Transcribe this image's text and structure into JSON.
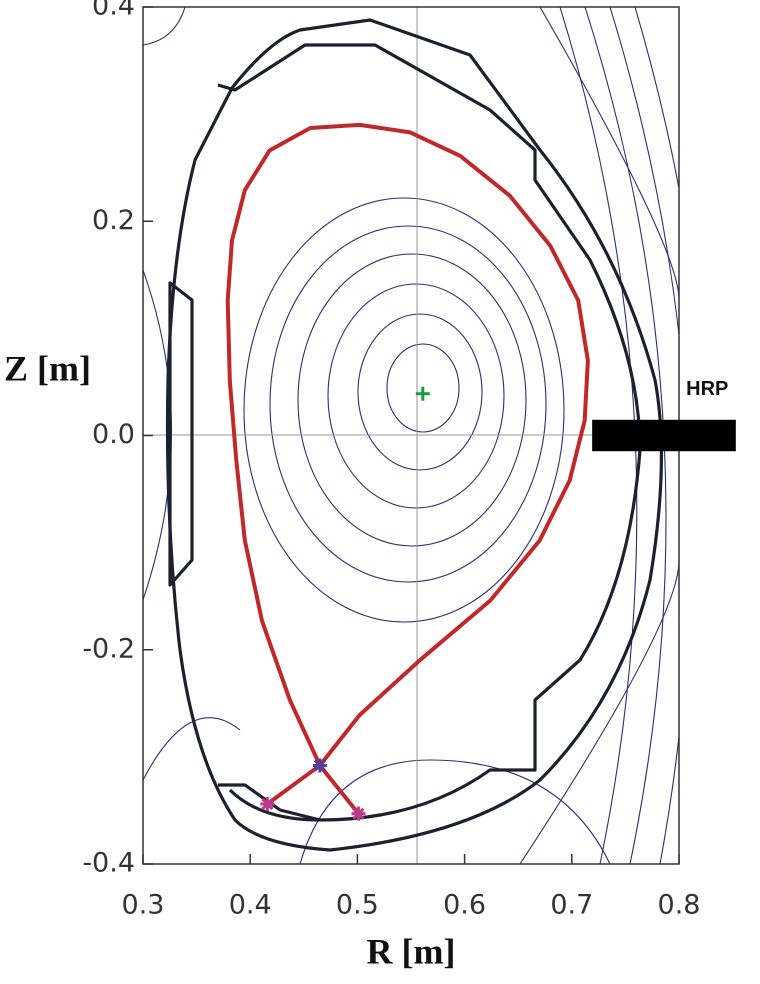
{
  "chart_data": {
    "type": "line",
    "x_label": "R [m]",
    "y_label": "Z [m]",
    "xlim": [
      0.3,
      0.8
    ],
    "ylim": [
      -0.4,
      0.4
    ],
    "xticks": [
      0.3,
      0.4,
      0.5,
      0.6,
      0.7,
      0.8
    ],
    "yticks": [
      0.4,
      0.2,
      {
        "value": 0,
        "label": "0.0"
      },
      -0.2,
      -0.4
    ],
    "series": [
      {
        "color": "#c0282a",
        "marker": "none",
        "x": [
          0.465,
          0.437,
          0.411,
          0.395,
          0.387,
          0.381,
          0.379,
          0.383,
          0.395,
          0.418,
          0.456,
          0.502,
          0.549,
          0.596,
          0.642,
          0.68,
          0.706,
          0.715,
          0.712,
          0.698,
          0.67,
          0.624,
          0.558,
          0.502,
          0.465
        ],
        "values": [
          -0.308,
          -0.247,
          -0.173,
          -0.098,
          -0.023,
          0.051,
          0.126,
          0.182,
          0.229,
          0.266,
          0.287,
          0.29,
          0.283,
          0.261,
          0.224,
          0.177,
          0.126,
          0.07,
          0.014,
          -0.042,
          -0.098,
          -0.154,
          -0.21,
          -0.261,
          -0.308
        ]
      },
      {
        "color": "#c0282a",
        "marker": "none",
        "x": [
          0.465,
          0.416
        ],
        "values": [
          -0.308,
          -0.344
        ]
      },
      {
        "color": "#c0282a",
        "marker": "none",
        "x": [
          0.465,
          0.501
        ],
        "values": [
          -0.308,
          -0.353
        ]
      },
      {
        "color": "#5a3a9a",
        "marker": "star",
        "x": [
          0.465
        ],
        "values": [
          -0.308
        ]
      },
      {
        "color": "#c03a8a",
        "marker": "star",
        "x": [
          0.416,
          0.501
        ],
        "values": [
          -0.344,
          -0.353
        ]
      },
      {
        "color": "#1a9a3a",
        "marker": "plus",
        "x": [
          0.561
        ],
        "values": [
          0.039
        ]
      }
    ],
    "probe": {
      "label": "HRP",
      "x": [
        0.719,
        0.853
      ],
      "values": [
        0.01,
        -0.01
      ],
      "color": "#000000"
    }
  }
}
